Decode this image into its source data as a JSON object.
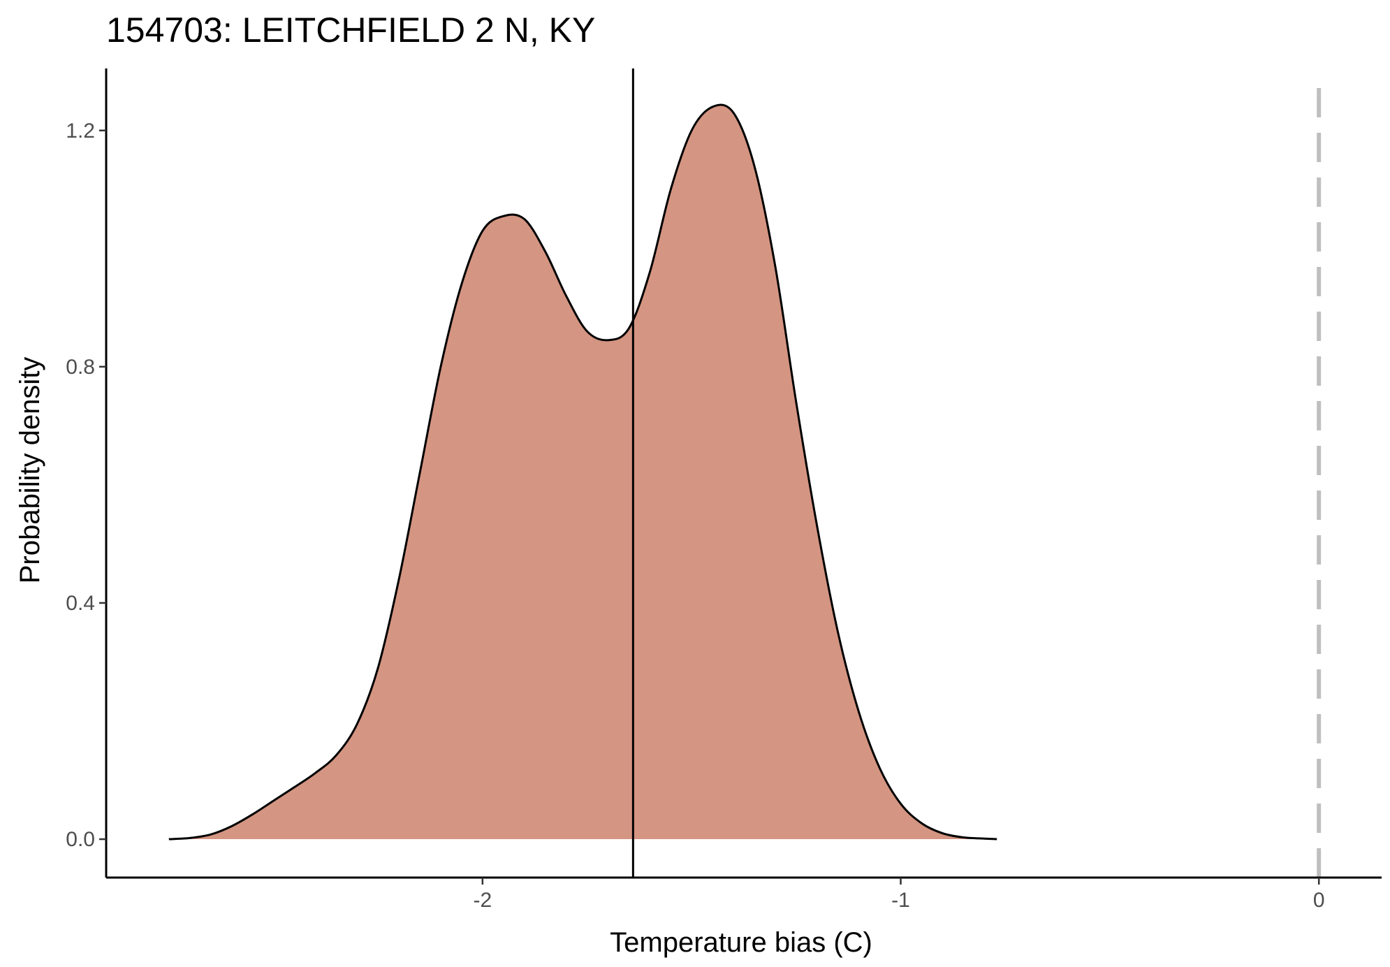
{
  "chart_data": {
    "type": "area",
    "title": "154703: LEITCHFIELD 2 N, KY",
    "xlabel": "Temperature bias (C)",
    "ylabel": "Probability density",
    "xlim": [
      -2.9,
      0.15
    ],
    "ylim": [
      -0.065,
      1.305
    ],
    "x_ticks": [
      -2,
      -1,
      0
    ],
    "x_tick_labels": [
      "-2",
      "-1",
      "0"
    ],
    "y_ticks": [
      0.0,
      0.4,
      0.8,
      1.2
    ],
    "y_tick_labels": [
      "0.0",
      "0.4",
      "0.8",
      "1.2"
    ],
    "grid": false,
    "fill_color": "#d49582",
    "line_color": "#000000",
    "vline_solid": -1.64,
    "vline_dashed": 0,
    "vline_dashed_color": "#bfbfbf",
    "density": {
      "x": [
        -2.75,
        -2.7,
        -2.65,
        -2.6,
        -2.55,
        -2.5,
        -2.45,
        -2.4,
        -2.35,
        -2.3,
        -2.25,
        -2.2,
        -2.15,
        -2.1,
        -2.05,
        -2.0,
        -1.95,
        -1.9,
        -1.85,
        -1.8,
        -1.75,
        -1.7,
        -1.65,
        -1.6,
        -1.55,
        -1.5,
        -1.45,
        -1.4,
        -1.35,
        -1.3,
        -1.25,
        -1.2,
        -1.15,
        -1.1,
        -1.05,
        -1.0,
        -0.95,
        -0.9,
        -0.85,
        -0.8,
        -0.77
      ],
      "y": [
        0.0,
        0.002,
        0.008,
        0.022,
        0.042,
        0.065,
        0.088,
        0.112,
        0.142,
        0.195,
        0.29,
        0.44,
        0.62,
        0.8,
        0.94,
        1.03,
        1.055,
        1.05,
        0.995,
        0.92,
        0.86,
        0.845,
        0.865,
        0.96,
        1.1,
        1.2,
        1.24,
        1.23,
        1.14,
        0.97,
        0.74,
        0.53,
        0.35,
        0.215,
        0.12,
        0.06,
        0.027,
        0.01,
        0.003,
        0.001,
        0.0
      ]
    }
  }
}
